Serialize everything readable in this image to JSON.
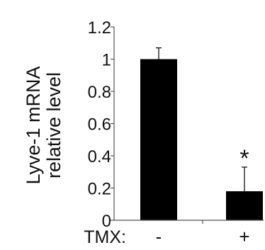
{
  "chart_data": {
    "type": "bar",
    "ylabel_lines": [
      "Lyve-1 mRNA",
      "relative level"
    ],
    "x_prefix": "TMX:",
    "categories": [
      "-",
      "+"
    ],
    "values": [
      1.0,
      0.18
    ],
    "error": [
      0.07,
      0.15
    ],
    "annotations": [
      "",
      "*"
    ],
    "ylim": [
      0,
      1.2
    ],
    "yticks": [
      0,
      0.2,
      0.4,
      0.6,
      0.8,
      1,
      1.2
    ],
    "ytick_labels": [
      "0",
      "0.2",
      "0.4",
      "0.6",
      "0.8",
      "1",
      "1.2"
    ],
    "grid": false,
    "bar_color": "#000000",
    "axis_color": "#555555"
  }
}
